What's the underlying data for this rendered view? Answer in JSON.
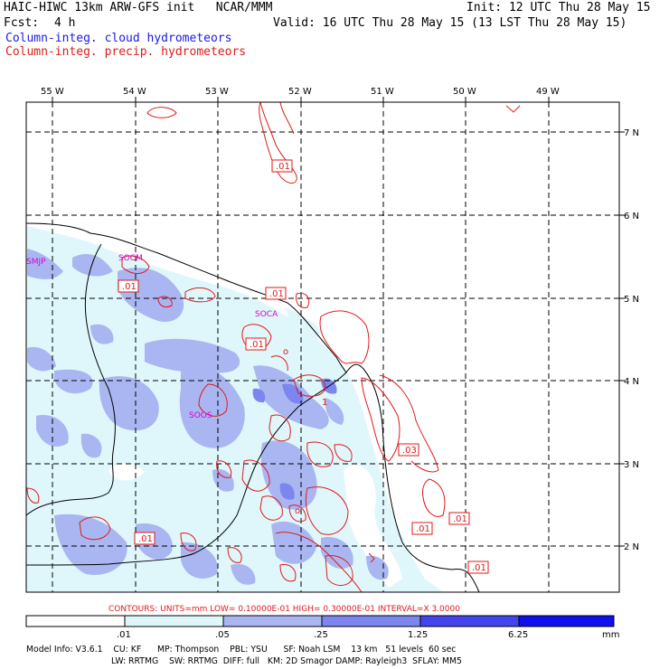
{
  "header": {
    "model_line": "HAIC-HIWC 13km ARW-GFS init   NCAR/MMM",
    "init": "Init: 12 UTC Thu 28 May 15",
    "fcst_label": "Fcst:",
    "fcst_value": "4 h",
    "valid": "Valid: 16 UTC Thu 28 May 15 (13 LST Thu 28 May 15)",
    "field1": "Column-integ. cloud hydrometeors",
    "field2": "Column-integ. precip. hydrometeors"
  },
  "colors": {
    "cloud_text": "#1a1ae6",
    "precip_text": "#e01a1a",
    "shade_1": "#dff7fb",
    "shade_2": "#aab6f2",
    "shade_3": "#7c86ee",
    "shade_4": "#4444ee",
    "shade_5": "#1010ee",
    "contour": "#e01a1a",
    "station": "#d400d4"
  },
  "map": {
    "lon_labels": [
      "55 W",
      "54 W",
      "53 W",
      "52 W",
      "51 W",
      "50 W",
      "49 W"
    ],
    "lat_labels": [
      "7 N",
      "6 N",
      "5 N",
      "4 N",
      "3 N",
      "2 N"
    ],
    "stations": [
      "SMJP",
      "SOCM",
      "SOCA",
      "SOOS"
    ],
    "contour_labels": [
      ".01",
      ".01",
      ".01",
      ".01",
      ".03",
      ".01",
      ".01",
      ".01",
      ".01"
    ]
  },
  "contour_info": "CONTOURS:  UNITS=mm  LOW= 0.10000E-01  HIGH= 0.30000E-01  INTERVAL=X  3.0000",
  "colorbar": {
    "ticks": [
      ".01",
      ".05",
      ".25",
      "1.25",
      "6.25"
    ],
    "units": "mm"
  },
  "model_info": {
    "line1": "Model Info: V3.6.1    CU: KF      MP: Thompson    PBL: YSU      SF: Noah LSM    13 km   51 levels  60 sec",
    "line2": "LW: RRTMG    SW: RRTMG  DIFF: full   KM: 2D Smagor DAMP: Rayleigh3  SFLAY: MM5"
  }
}
